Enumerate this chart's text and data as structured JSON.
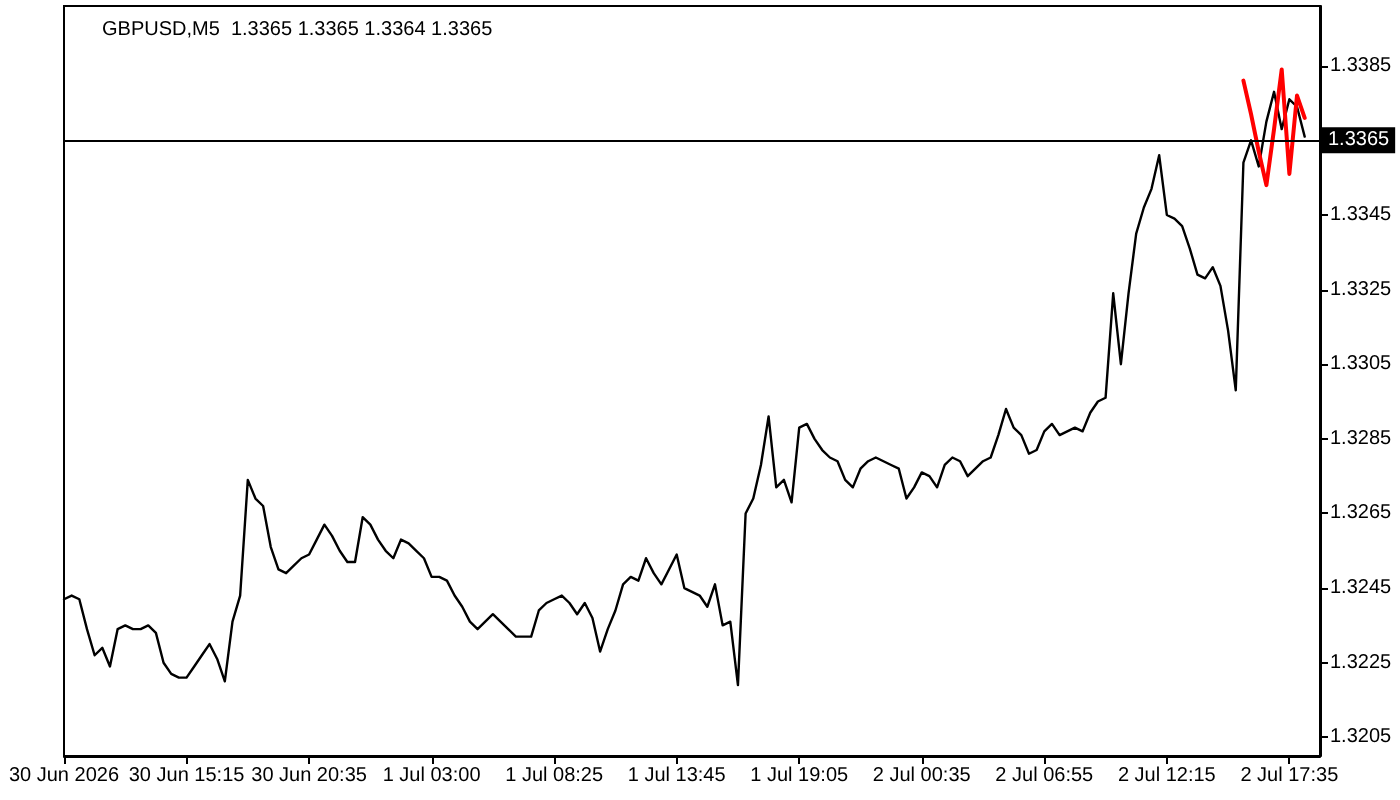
{
  "chart_data": {
    "type": "line",
    "title": "GBPUSD,M5  1.3365 1.3365 1.3364 1.3365",
    "categories": [
      "30 Jun 2026",
      null,
      null,
      null,
      null,
      null,
      null,
      null,
      null,
      null,
      null,
      null,
      null,
      null,
      null,
      null,
      "30 Jun 15:15",
      null,
      null,
      null,
      null,
      null,
      null,
      null,
      null,
      null,
      null,
      null,
      null,
      null,
      null,
      null,
      "30 Jun 20:35",
      null,
      null,
      null,
      null,
      null,
      null,
      null,
      null,
      null,
      null,
      null,
      null,
      null,
      null,
      null,
      "1 Jul 03:00",
      null,
      null,
      null,
      null,
      null,
      null,
      null,
      null,
      null,
      null,
      null,
      null,
      null,
      null,
      null,
      "1 Jul 08:25",
      null,
      null,
      null,
      null,
      null,
      null,
      null,
      null,
      null,
      null,
      null,
      null,
      null,
      null,
      null,
      "1 Jul 13:45",
      null,
      null,
      null,
      null,
      null,
      null,
      null,
      null,
      null,
      null,
      null,
      null,
      null,
      null,
      null,
      "1 Jul 19:05",
      null,
      null,
      null,
      null,
      null,
      null,
      null,
      null,
      null,
      null,
      null,
      null,
      null,
      null,
      null,
      "2 Jul 00:35",
      null,
      null,
      null,
      null,
      null,
      null,
      null,
      null,
      null,
      null,
      null,
      null,
      null,
      null,
      null,
      "2 Jul 06:55",
      null,
      null,
      null,
      null,
      null,
      null,
      null,
      null,
      null,
      null,
      null,
      null,
      null,
      null,
      null,
      "2 Jul 12:15",
      null,
      null,
      null,
      null,
      null,
      null,
      null,
      null,
      null,
      null,
      null,
      null,
      null,
      null,
      null,
      "2 Jul 17:35",
      null,
      null,
      null,
      null
    ],
    "series": [
      {
        "color": "#000000",
        "values": [
          1.3242,
          1.3243,
          1.3242,
          1.3234,
          1.3227,
          1.3229,
          1.3224,
          1.3234,
          1.3235,
          1.3234,
          1.3234,
          1.3235,
          1.3233,
          1.3225,
          1.3222,
          1.3221,
          1.3221,
          1.3224,
          1.3227,
          1.323,
          1.3226,
          1.322,
          1.3236,
          1.3243,
          1.3274,
          1.3269,
          1.3267,
          1.3256,
          1.325,
          1.3249,
          1.3251,
          1.3253,
          1.3254,
          1.3258,
          1.3262,
          1.3259,
          1.3255,
          1.3252,
          1.3252,
          1.3264,
          1.3262,
          1.3258,
          1.3255,
          1.3253,
          1.3258,
          1.3257,
          1.3255,
          1.3253,
          1.3248,
          1.3248,
          1.3247,
          1.3243,
          1.324,
          1.3236,
          1.3234,
          1.3236,
          1.3238,
          1.3236,
          1.3234,
          1.3232,
          1.3232,
          1.3232,
          1.3239,
          1.3241,
          1.3242,
          1.3243,
          1.3241,
          1.3238,
          1.3241,
          1.3237,
          1.3228,
          1.3234,
          1.3239,
          1.3246,
          1.3248,
          1.3247,
          1.3253,
          1.3249,
          1.3246,
          1.325,
          1.3254,
          1.3245,
          1.3244,
          1.3243,
          1.324,
          1.3246,
          1.3235,
          1.3236,
          1.3219,
          1.3265,
          1.3269,
          1.3278,
          1.3291,
          1.3272,
          1.3274,
          1.3268,
          1.3288,
          1.3289,
          1.3285,
          1.3282,
          1.328,
          1.3279,
          1.3274,
          1.3272,
          1.3277,
          1.3279,
          1.328,
          1.3279,
          1.3278,
          1.3277,
          1.3269,
          1.3272,
          1.3276,
          1.3275,
          1.3272,
          1.3278,
          1.328,
          1.3279,
          1.3275,
          1.3277,
          1.3279,
          1.328,
          1.3286,
          1.3293,
          1.3288,
          1.3286,
          1.3281,
          1.3282,
          1.3287,
          1.3289,
          1.3286,
          1.3287,
          1.3288,
          1.3287,
          1.3292,
          1.3295,
          1.3296,
          1.3324,
          1.3305,
          1.3324,
          1.334,
          1.3347,
          1.3352,
          1.3361,
          1.3345,
          1.3344,
          1.3342,
          1.3336,
          1.3329,
          1.3328,
          1.3331,
          1.3326,
          1.3314,
          1.3298,
          1.3359,
          1.3365,
          1.3358,
          1.337,
          1.3378,
          1.3368,
          1.3376,
          1.3374,
          1.3366,
          null,
          null
        ]
      },
      {
        "color": "#ff0000",
        "values": [
          null,
          null,
          null,
          null,
          null,
          null,
          null,
          null,
          null,
          null,
          null,
          null,
          null,
          null,
          null,
          null,
          null,
          null,
          null,
          null,
          null,
          null,
          null,
          null,
          null,
          null,
          null,
          null,
          null,
          null,
          null,
          null,
          null,
          null,
          null,
          null,
          null,
          null,
          null,
          null,
          null,
          null,
          null,
          null,
          null,
          null,
          null,
          null,
          null,
          null,
          null,
          null,
          null,
          null,
          null,
          null,
          null,
          null,
          null,
          null,
          null,
          null,
          null,
          null,
          null,
          null,
          null,
          null,
          null,
          null,
          null,
          null,
          null,
          null,
          null,
          null,
          null,
          null,
          null,
          null,
          null,
          null,
          null,
          null,
          null,
          null,
          null,
          null,
          null,
          null,
          null,
          null,
          null,
          null,
          null,
          null,
          null,
          null,
          null,
          null,
          null,
          null,
          null,
          null,
          null,
          null,
          null,
          null,
          null,
          null,
          null,
          null,
          null,
          null,
          null,
          null,
          null,
          null,
          null,
          null,
          null,
          null,
          null,
          null,
          null,
          null,
          null,
          null,
          null,
          null,
          null,
          null,
          null,
          null,
          null,
          null,
          null,
          null,
          null,
          null,
          null,
          null,
          null,
          null,
          null,
          null,
          null,
          null,
          null,
          null,
          null,
          null,
          null,
          null,
          1.3381,
          1.3372,
          1.3362,
          1.3353,
          1.3368,
          1.3384,
          1.3356,
          1.3377,
          1.3371,
          null,
          null
        ]
      }
    ],
    "ylim": [
      1.32,
      1.3401
    ],
    "yticks": [
      1.3205,
      1.3225,
      1.3245,
      1.3265,
      1.3285,
      1.3305,
      1.3325,
      1.3345,
      1.3385
    ],
    "ref_lines": [
      {
        "axis": "y",
        "value": 1.3365,
        "label": "1.3365",
        "color": "#000000"
      }
    ],
    "line_style": "solid"
  }
}
